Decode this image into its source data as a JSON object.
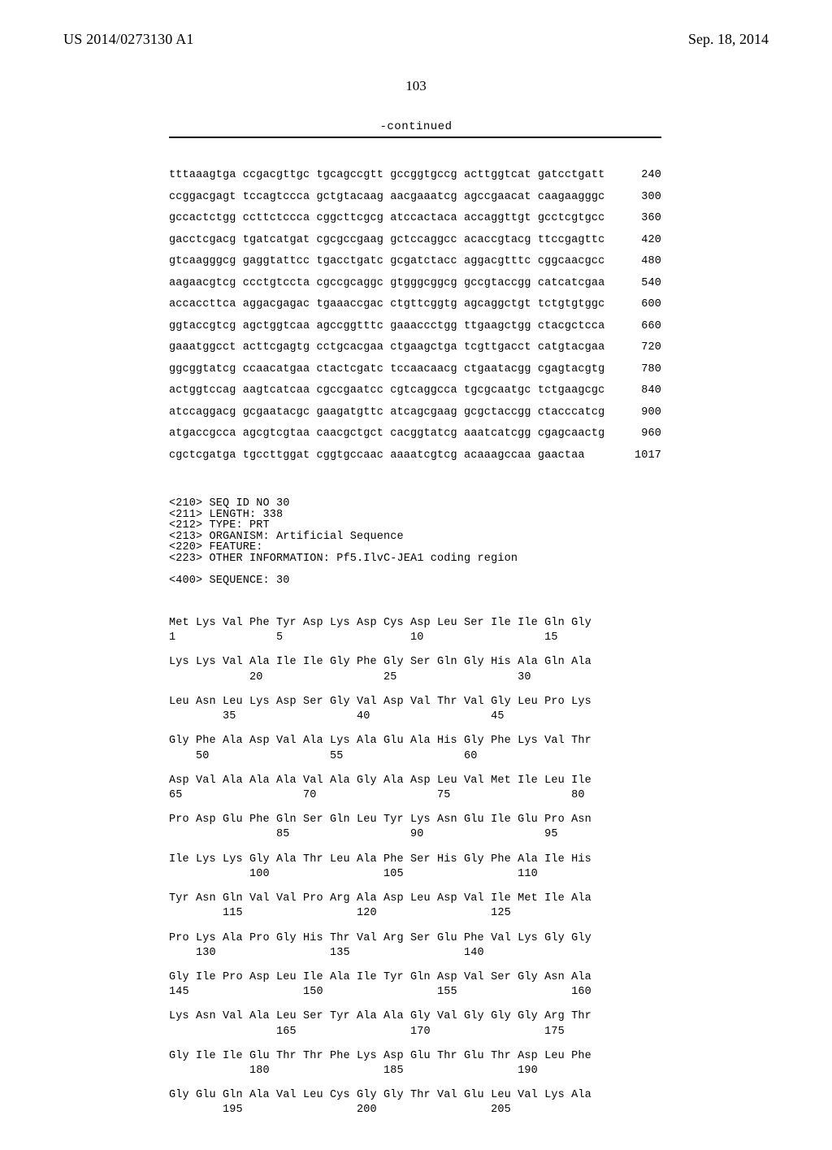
{
  "header": {
    "publication_number": "US 2014/0273130 A1",
    "date": "Sep. 18, 2014",
    "page_number": "103",
    "continued_label": "-continued"
  },
  "nucleotide_rows": [
    {
      "groups": "tttaaagtga ccgacgttgc tgcagccgtt gccggtgccg acttggtcat gatcctgatt",
      "num": "240"
    },
    {
      "groups": "ccggacgagt tccagtccca gctgtacaag aacgaaatcg agccgaacat caagaagggc",
      "num": "300"
    },
    {
      "groups": "gccactctgg ccttctccca cggcttcgcg atccactaca accaggttgt gcctcgtgcc",
      "num": "360"
    },
    {
      "groups": "gacctcgacg tgatcatgat cgcgccgaag gctccaggcc acaccgtacg ttccgagttc",
      "num": "420"
    },
    {
      "groups": "gtcaagggcg gaggtattcc tgacctgatc gcgatctacc aggacgtttc cggcaacgcc",
      "num": "480"
    },
    {
      "groups": "aagaacgtcg ccctgtccta cgccgcaggc gtgggcggcg gccgtaccgg catcatcgaa",
      "num": "540"
    },
    {
      "groups": "accaccttca aggacgagac tgaaaccgac ctgttcggtg agcaggctgt tctgtgtggc",
      "num": "600"
    },
    {
      "groups": "ggtaccgtcg agctggtcaa agccggtttc gaaaccctgg ttgaagctgg ctacgctcca",
      "num": "660"
    },
    {
      "groups": "gaaatggcct acttcgagtg cctgcacgaa ctgaagctga tcgttgacct catgtacgaa",
      "num": "720"
    },
    {
      "groups": "ggcggtatcg ccaacatgaa ctactcgatc tccaacaacg ctgaatacgg cgagtacgtg",
      "num": "780"
    },
    {
      "groups": "actggtccag aagtcatcaa cgccgaatcc cgtcaggcca tgcgcaatgc tctgaagcgc",
      "num": "840"
    },
    {
      "groups": "atccaggacg gcgaatacgc gaagatgttc atcagcgaag gcgctaccgg ctacccatcg",
      "num": "900"
    },
    {
      "groups": "atgaccgcca agcgtcgtaa caacgctgct cacggtatcg aaatcatcgg cgagcaactg",
      "num": "960"
    },
    {
      "groups": "cgctcgatga tgccttggat cggtgccaac aaaatcgtcg acaaagccaa gaactaa",
      "num": "1017"
    }
  ],
  "metadata_lines": [
    "<210> SEQ ID NO 30",
    "<211> LENGTH: 338",
    "<212> TYPE: PRT",
    "<213> ORGANISM: Artificial Sequence",
    "<220> FEATURE:",
    "<223> OTHER INFORMATION: Pf5.IlvC-JEA1 coding region",
    "",
    "<400> SEQUENCE: 30"
  ],
  "protein_pairs": [
    {
      "aa": "Met Lys Val Phe Tyr Asp Lys Asp Cys Asp Leu Ser Ile Ile Gln Gly",
      "num": "1               5                   10                  15"
    },
    {
      "aa": "Lys Lys Val Ala Ile Ile Gly Phe Gly Ser Gln Gly His Ala Gln Ala",
      "num": "            20                  25                  30"
    },
    {
      "aa": "Leu Asn Leu Lys Asp Ser Gly Val Asp Val Thr Val Gly Leu Pro Lys",
      "num": "        35                  40                  45"
    },
    {
      "aa": "Gly Phe Ala Asp Val Ala Lys Ala Glu Ala His Gly Phe Lys Val Thr",
      "num": "    50                  55                  60"
    },
    {
      "aa": "Asp Val Ala Ala Ala Val Ala Gly Ala Asp Leu Val Met Ile Leu Ile",
      "num": "65                  70                  75                  80"
    },
    {
      "aa": "Pro Asp Glu Phe Gln Ser Gln Leu Tyr Lys Asn Glu Ile Glu Pro Asn",
      "num": "                85                  90                  95"
    },
    {
      "aa": "Ile Lys Lys Gly Ala Thr Leu Ala Phe Ser His Gly Phe Ala Ile His",
      "num": "            100                 105                 110"
    },
    {
      "aa": "Tyr Asn Gln Val Val Pro Arg Ala Asp Leu Asp Val Ile Met Ile Ala",
      "num": "        115                 120                 125"
    },
    {
      "aa": "Pro Lys Ala Pro Gly His Thr Val Arg Ser Glu Phe Val Lys Gly Gly",
      "num": "    130                 135                 140"
    },
    {
      "aa": "Gly Ile Pro Asp Leu Ile Ala Ile Tyr Gln Asp Val Ser Gly Asn Ala",
      "num": "145                 150                 155                 160"
    },
    {
      "aa": "Lys Asn Val Ala Leu Ser Tyr Ala Ala Gly Val Gly Gly Gly Arg Thr",
      "num": "                165                 170                 175"
    },
    {
      "aa": "Gly Ile Ile Glu Thr Thr Phe Lys Asp Glu Thr Glu Thr Asp Leu Phe",
      "num": "            180                 185                 190"
    },
    {
      "aa": "Gly Glu Gln Ala Val Leu Cys Gly Gly Thr Val Glu Leu Val Lys Ala",
      "num": "        195                 200                 205"
    }
  ]
}
